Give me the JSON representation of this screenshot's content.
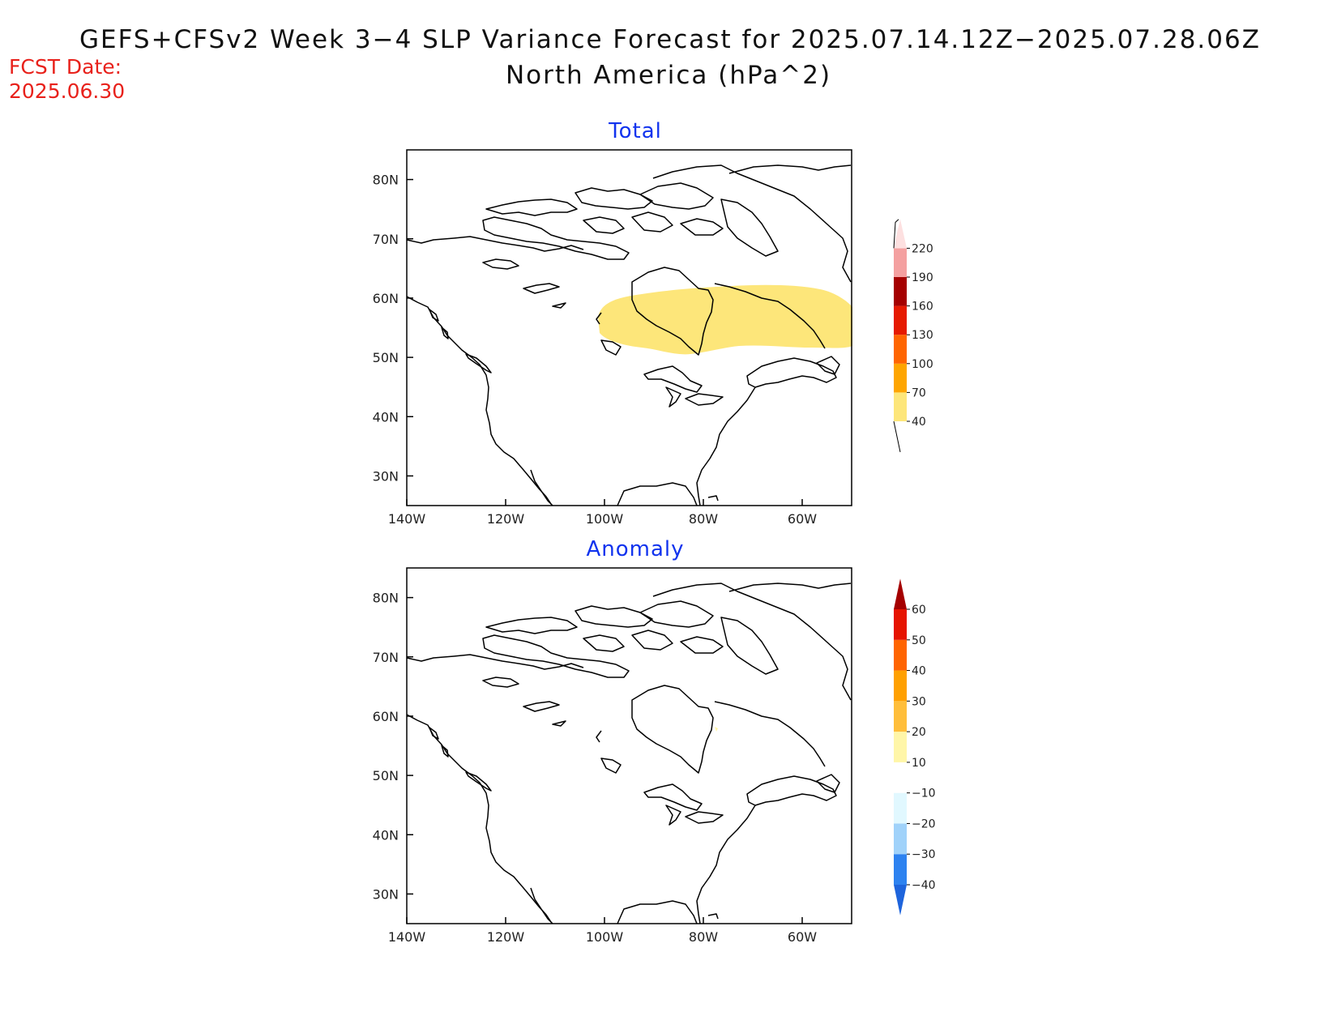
{
  "title_line1": "GEFS+CFSv2 Week 3−4 SLP Variance Forecast for 2025.07.14.12Z−2025.07.28.06Z",
  "title_line2": "North America (hPa^2)",
  "fcst_label": "FCST Date:",
  "fcst_date": "2025.06.30",
  "map_extent": {
    "lon_min": -140,
    "lon_max": -50,
    "lat_min": 25,
    "lat_max": 85
  },
  "lat_ticks": [
    "80N",
    "70N",
    "60N",
    "50N",
    "40N",
    "30N"
  ],
  "lon_ticks": [
    "140W",
    "120W",
    "100W",
    "80W",
    "60W"
  ],
  "panels": [
    {
      "title": "Total",
      "shaded_regions": [
        {
          "level": "40-70",
          "color": "#fde67a",
          "region": "central/eastern Canada, approx. 103W-50W, 51N-61N"
        }
      ],
      "colorbar": {
        "labels": [
          "40",
          "70",
          "100",
          "130",
          "160",
          "190",
          "220"
        ],
        "colors": [
          "#fde67a",
          "#fea500",
          "#ff6500",
          "#e61a00",
          "#a50000",
          "#f4a0a0",
          "#fde0e0"
        ],
        "lower_end": "open",
        "upper_end": "triangle"
      }
    },
    {
      "title": "Anomaly",
      "shaded_regions": [],
      "colorbar": {
        "labels": [
          "−40",
          "−30",
          "−20",
          "−10",
          "10",
          "20",
          "30",
          "40",
          "50",
          "60"
        ],
        "colors": [
          "#1e64dc",
          "#2d82f0",
          "#a0d2fa",
          "#e1f8ff",
          "#ffffff",
          "#fff6a8",
          "#ffbe3a",
          "#ffa000",
          "#ff6400",
          "#e61400",
          "#a50000"
        ],
        "lower_end": "triangle",
        "upper_end": "triangle"
      }
    }
  ]
}
